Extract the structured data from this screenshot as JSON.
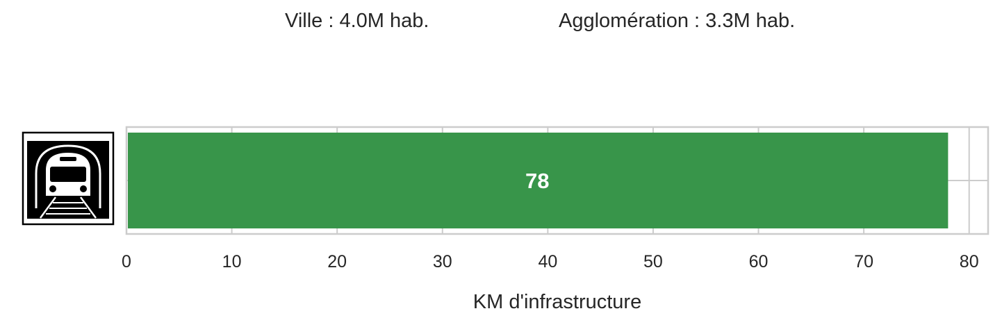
{
  "header": {
    "ville": "Ville : 4.0M hab.",
    "agglomeration": "Agglomération : 3.3M hab."
  },
  "chart_data": {
    "type": "bar",
    "orientation": "horizontal",
    "categories": [
      "metro"
    ],
    "values": [
      78
    ],
    "data_labels": [
      "78"
    ],
    "xlabel": "KM d'infrastructure",
    "xlim": [
      0,
      81.8
    ],
    "xticks": [
      0,
      10,
      20,
      30,
      40,
      50,
      60,
      70,
      80
    ],
    "grid": true,
    "bar_color": "#38954a",
    "category_icons": [
      "metro-train-icon"
    ]
  }
}
